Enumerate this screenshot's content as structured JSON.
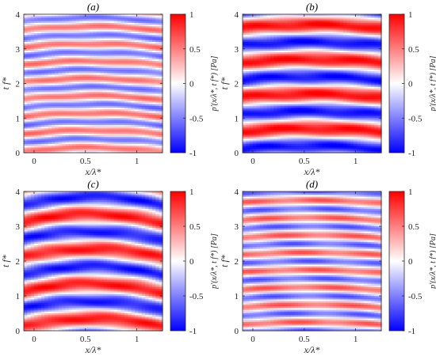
{
  "chart_data": [
    {
      "type": "heatmap",
      "title": "(a)",
      "xlabel": "x/λ*",
      "ylabel": "t f*",
      "xlim": [
        -0.1,
        1.25
      ],
      "ylim": [
        0,
        4
      ],
      "xticks": [
        "0",
        "0.5",
        "1"
      ],
      "yticks": [
        "0",
        "1",
        "2",
        "3",
        "4"
      ],
      "colorbar": {
        "label": "p′(x/λ*, t f*) [Pa]",
        "ticks": [
          "1",
          "0.5",
          "0",
          "-0.5",
          "-1"
        ],
        "range": [
          -1,
          1
        ]
      },
      "field": {
        "bands_per_period": 2,
        "amplitude": 0.55,
        "curvature": 0.12,
        "base_phase": 0.15
      }
    },
    {
      "type": "heatmap",
      "title": "(b)",
      "xlabel": "x/λ*",
      "ylabel": "t f*",
      "xlim": [
        -0.1,
        1.25
      ],
      "ylim": [
        0,
        4
      ],
      "xticks": [
        "0",
        "0.5",
        "1"
      ],
      "yticks": [
        "0",
        "1",
        "2",
        "3",
        "4"
      ],
      "colorbar": {
        "label": "p′(x/λ*, t f*) [Pa]",
        "ticks": [
          "1",
          "0.5",
          "0",
          "-0.5",
          "-1"
        ],
        "range": [
          -1,
          1
        ]
      },
      "field": {
        "bands_per_period": 1,
        "amplitude": 0.95,
        "curvature": 0.1,
        "base_phase": 0.7
      }
    },
    {
      "type": "heatmap",
      "title": "(c)",
      "xlabel": "x/λ*",
      "ylabel": "t f*",
      "xlim": [
        -0.1,
        1.25
      ],
      "ylim": [
        0,
        4
      ],
      "xticks": [
        "0",
        "0.5",
        "1"
      ],
      "yticks": [
        "0",
        "1",
        "2",
        "3",
        "4"
      ],
      "colorbar": {
        "label": "p′(x/λ*, t f*) [Pa]",
        "ticks": [
          "1",
          "0.5",
          "0",
          "-0.5",
          "-1"
        ],
        "range": [
          -1,
          1
        ]
      },
      "field": {
        "bands_per_period": 1,
        "amplitude": 0.9,
        "curvature": 0.25,
        "base_phase": 0.35
      }
    },
    {
      "type": "heatmap",
      "title": "(d)",
      "xlabel": "x/λ*",
      "ylabel": "t f*",
      "xlim": [
        -0.1,
        1.25
      ],
      "ylim": [
        0,
        4
      ],
      "xticks": [
        "0",
        "0.5",
        "1"
      ],
      "yticks": [
        "0",
        "1",
        "2",
        "3",
        "4"
      ],
      "colorbar": {
        "label": "p′(x/λ*, t f*) [Pa]",
        "ticks": [
          "1",
          "0.5",
          "0",
          "-0.5",
          "-1"
        ],
        "range": [
          -1,
          1
        ]
      },
      "field": {
        "bands_per_period": 2,
        "amplitude": 0.6,
        "curvature": 0.08,
        "base_phase": 0.25
      }
    }
  ]
}
